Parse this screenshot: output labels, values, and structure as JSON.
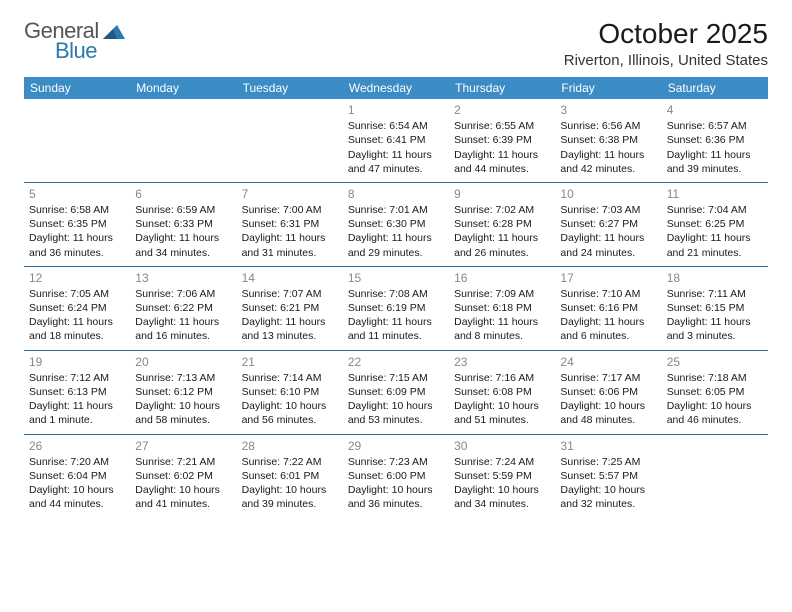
{
  "logo": {
    "general": "General",
    "blue": "Blue"
  },
  "title": "October 2025",
  "location": "Riverton, Illinois, United States",
  "colors": {
    "header_bg": "#3b8bc4",
    "header_text": "#ffffff",
    "row_border": "#2a6a9a",
    "daynum": "#888888",
    "body_text": "#1a1a1a",
    "logo_gray": "#555555",
    "logo_blue": "#2a7ab0",
    "page_bg": "#ffffff"
  },
  "day_headers": [
    "Sunday",
    "Monday",
    "Tuesday",
    "Wednesday",
    "Thursday",
    "Friday",
    "Saturday"
  ],
  "weeks": [
    [
      {
        "day": "",
        "sunrise": "",
        "sunset": "",
        "daylight1": "",
        "daylight2": ""
      },
      {
        "day": "",
        "sunrise": "",
        "sunset": "",
        "daylight1": "",
        "daylight2": ""
      },
      {
        "day": "",
        "sunrise": "",
        "sunset": "",
        "daylight1": "",
        "daylight2": ""
      },
      {
        "day": "1",
        "sunrise": "Sunrise: 6:54 AM",
        "sunset": "Sunset: 6:41 PM",
        "daylight1": "Daylight: 11 hours",
        "daylight2": "and 47 minutes."
      },
      {
        "day": "2",
        "sunrise": "Sunrise: 6:55 AM",
        "sunset": "Sunset: 6:39 PM",
        "daylight1": "Daylight: 11 hours",
        "daylight2": "and 44 minutes."
      },
      {
        "day": "3",
        "sunrise": "Sunrise: 6:56 AM",
        "sunset": "Sunset: 6:38 PM",
        "daylight1": "Daylight: 11 hours",
        "daylight2": "and 42 minutes."
      },
      {
        "day": "4",
        "sunrise": "Sunrise: 6:57 AM",
        "sunset": "Sunset: 6:36 PM",
        "daylight1": "Daylight: 11 hours",
        "daylight2": "and 39 minutes."
      }
    ],
    [
      {
        "day": "5",
        "sunrise": "Sunrise: 6:58 AM",
        "sunset": "Sunset: 6:35 PM",
        "daylight1": "Daylight: 11 hours",
        "daylight2": "and 36 minutes."
      },
      {
        "day": "6",
        "sunrise": "Sunrise: 6:59 AM",
        "sunset": "Sunset: 6:33 PM",
        "daylight1": "Daylight: 11 hours",
        "daylight2": "and 34 minutes."
      },
      {
        "day": "7",
        "sunrise": "Sunrise: 7:00 AM",
        "sunset": "Sunset: 6:31 PM",
        "daylight1": "Daylight: 11 hours",
        "daylight2": "and 31 minutes."
      },
      {
        "day": "8",
        "sunrise": "Sunrise: 7:01 AM",
        "sunset": "Sunset: 6:30 PM",
        "daylight1": "Daylight: 11 hours",
        "daylight2": "and 29 minutes."
      },
      {
        "day": "9",
        "sunrise": "Sunrise: 7:02 AM",
        "sunset": "Sunset: 6:28 PM",
        "daylight1": "Daylight: 11 hours",
        "daylight2": "and 26 minutes."
      },
      {
        "day": "10",
        "sunrise": "Sunrise: 7:03 AM",
        "sunset": "Sunset: 6:27 PM",
        "daylight1": "Daylight: 11 hours",
        "daylight2": "and 24 minutes."
      },
      {
        "day": "11",
        "sunrise": "Sunrise: 7:04 AM",
        "sunset": "Sunset: 6:25 PM",
        "daylight1": "Daylight: 11 hours",
        "daylight2": "and 21 minutes."
      }
    ],
    [
      {
        "day": "12",
        "sunrise": "Sunrise: 7:05 AM",
        "sunset": "Sunset: 6:24 PM",
        "daylight1": "Daylight: 11 hours",
        "daylight2": "and 18 minutes."
      },
      {
        "day": "13",
        "sunrise": "Sunrise: 7:06 AM",
        "sunset": "Sunset: 6:22 PM",
        "daylight1": "Daylight: 11 hours",
        "daylight2": "and 16 minutes."
      },
      {
        "day": "14",
        "sunrise": "Sunrise: 7:07 AM",
        "sunset": "Sunset: 6:21 PM",
        "daylight1": "Daylight: 11 hours",
        "daylight2": "and 13 minutes."
      },
      {
        "day": "15",
        "sunrise": "Sunrise: 7:08 AM",
        "sunset": "Sunset: 6:19 PM",
        "daylight1": "Daylight: 11 hours",
        "daylight2": "and 11 minutes."
      },
      {
        "day": "16",
        "sunrise": "Sunrise: 7:09 AM",
        "sunset": "Sunset: 6:18 PM",
        "daylight1": "Daylight: 11 hours",
        "daylight2": "and 8 minutes."
      },
      {
        "day": "17",
        "sunrise": "Sunrise: 7:10 AM",
        "sunset": "Sunset: 6:16 PM",
        "daylight1": "Daylight: 11 hours",
        "daylight2": "and 6 minutes."
      },
      {
        "day": "18",
        "sunrise": "Sunrise: 7:11 AM",
        "sunset": "Sunset: 6:15 PM",
        "daylight1": "Daylight: 11 hours",
        "daylight2": "and 3 minutes."
      }
    ],
    [
      {
        "day": "19",
        "sunrise": "Sunrise: 7:12 AM",
        "sunset": "Sunset: 6:13 PM",
        "daylight1": "Daylight: 11 hours",
        "daylight2": "and 1 minute."
      },
      {
        "day": "20",
        "sunrise": "Sunrise: 7:13 AM",
        "sunset": "Sunset: 6:12 PM",
        "daylight1": "Daylight: 10 hours",
        "daylight2": "and 58 minutes."
      },
      {
        "day": "21",
        "sunrise": "Sunrise: 7:14 AM",
        "sunset": "Sunset: 6:10 PM",
        "daylight1": "Daylight: 10 hours",
        "daylight2": "and 56 minutes."
      },
      {
        "day": "22",
        "sunrise": "Sunrise: 7:15 AM",
        "sunset": "Sunset: 6:09 PM",
        "daylight1": "Daylight: 10 hours",
        "daylight2": "and 53 minutes."
      },
      {
        "day": "23",
        "sunrise": "Sunrise: 7:16 AM",
        "sunset": "Sunset: 6:08 PM",
        "daylight1": "Daylight: 10 hours",
        "daylight2": "and 51 minutes."
      },
      {
        "day": "24",
        "sunrise": "Sunrise: 7:17 AM",
        "sunset": "Sunset: 6:06 PM",
        "daylight1": "Daylight: 10 hours",
        "daylight2": "and 48 minutes."
      },
      {
        "day": "25",
        "sunrise": "Sunrise: 7:18 AM",
        "sunset": "Sunset: 6:05 PM",
        "daylight1": "Daylight: 10 hours",
        "daylight2": "and 46 minutes."
      }
    ],
    [
      {
        "day": "26",
        "sunrise": "Sunrise: 7:20 AM",
        "sunset": "Sunset: 6:04 PM",
        "daylight1": "Daylight: 10 hours",
        "daylight2": "and 44 minutes."
      },
      {
        "day": "27",
        "sunrise": "Sunrise: 7:21 AM",
        "sunset": "Sunset: 6:02 PM",
        "daylight1": "Daylight: 10 hours",
        "daylight2": "and 41 minutes."
      },
      {
        "day": "28",
        "sunrise": "Sunrise: 7:22 AM",
        "sunset": "Sunset: 6:01 PM",
        "daylight1": "Daylight: 10 hours",
        "daylight2": "and 39 minutes."
      },
      {
        "day": "29",
        "sunrise": "Sunrise: 7:23 AM",
        "sunset": "Sunset: 6:00 PM",
        "daylight1": "Daylight: 10 hours",
        "daylight2": "and 36 minutes."
      },
      {
        "day": "30",
        "sunrise": "Sunrise: 7:24 AM",
        "sunset": "Sunset: 5:59 PM",
        "daylight1": "Daylight: 10 hours",
        "daylight2": "and 34 minutes."
      },
      {
        "day": "31",
        "sunrise": "Sunrise: 7:25 AM",
        "sunset": "Sunset: 5:57 PM",
        "daylight1": "Daylight: 10 hours",
        "daylight2": "and 32 minutes."
      },
      {
        "day": "",
        "sunrise": "",
        "sunset": "",
        "daylight1": "",
        "daylight2": ""
      }
    ]
  ]
}
